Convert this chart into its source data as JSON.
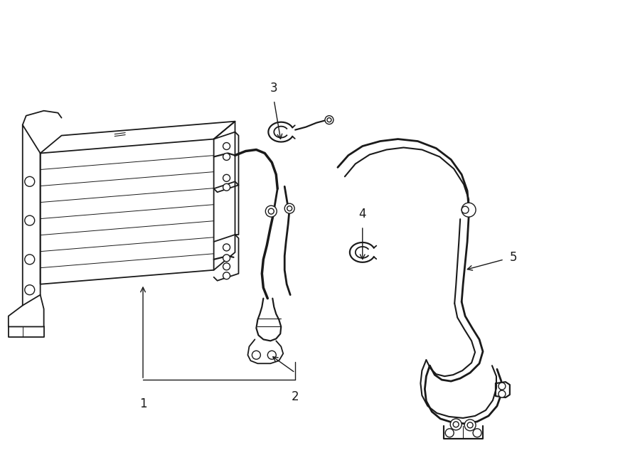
{
  "bg_color": "#ffffff",
  "line_color": "#1a1a1a",
  "lw": 1.3,
  "fig_width": 9.0,
  "fig_height": 6.61,
  "label_fontsize": 12,
  "label_fontsize_bold": false
}
